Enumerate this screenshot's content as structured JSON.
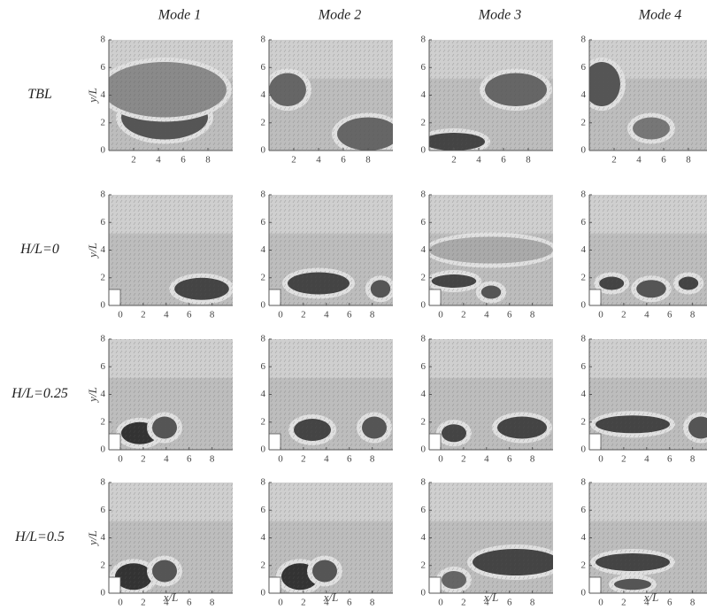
{
  "columns": [
    "Mode 1",
    "Mode 2",
    "Mode 3",
    "Mode 4"
  ],
  "rows": [
    "TBL",
    "H/L=0",
    "H/L=0.25",
    "H/L=0.5"
  ],
  "y_label": "y/L",
  "x_label": "x/L",
  "ylim": [
    0,
    8
  ],
  "yticks": [
    0,
    2,
    4,
    6,
    8
  ],
  "xlim_tbl": [
    0,
    10
  ],
  "xticks_tbl": [
    2,
    4,
    6,
    8
  ],
  "xlim": [
    -1,
    9.8
  ],
  "xticks": [
    0,
    2,
    4,
    6,
    8
  ]
}
